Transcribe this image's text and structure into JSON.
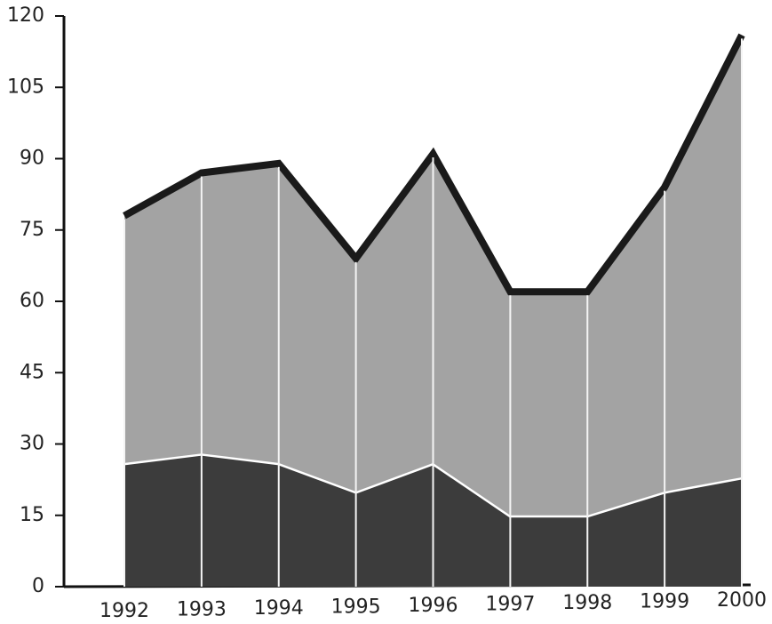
{
  "chart_data": {
    "type": "stacked_area",
    "categories": [
      "1992",
      "1993",
      "1994",
      "1995",
      "1996",
      "1997",
      "1998",
      "1999",
      "2000"
    ],
    "series": [
      {
        "color": "#3c3c3c",
        "edge_color": "#ffffff",
        "values": [
          26,
          28,
          26,
          20,
          26,
          15,
          15,
          20,
          23
        ]
      },
      {
        "color": "#a3a3a3",
        "edge_color": "#1a1a1a",
        "values": [
          52,
          59,
          63,
          49,
          65,
          47,
          47,
          64,
          93
        ]
      }
    ],
    "ylim": [
      0,
      120
    ],
    "yticks": [
      0,
      15,
      30,
      45,
      60,
      75,
      90,
      105,
      120
    ],
    "grid": false
  }
}
